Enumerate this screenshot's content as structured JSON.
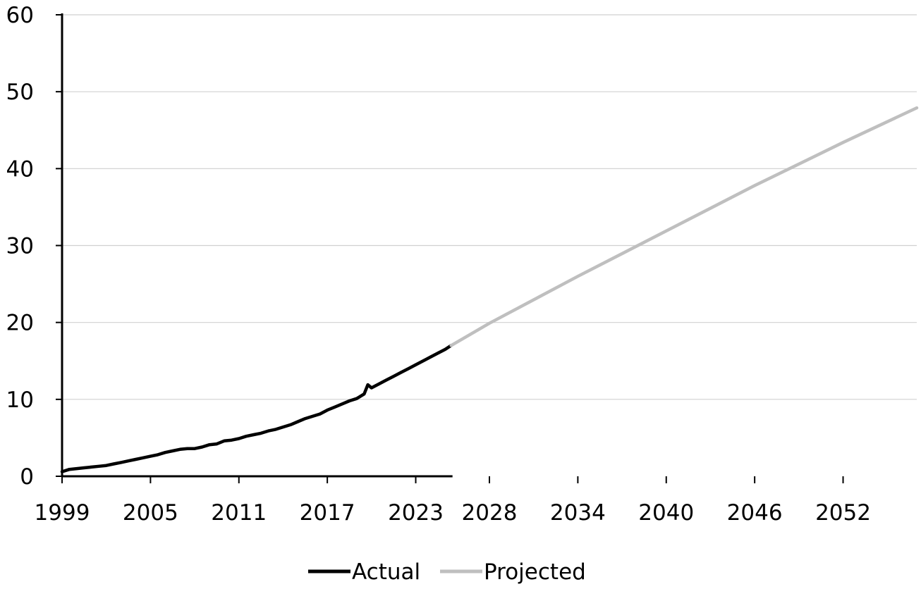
{
  "chart_data": {
    "type": "line",
    "title": "",
    "xlabel": "",
    "ylabel": "",
    "xlim": [
      1999,
      2057
    ],
    "ylim": [
      0,
      60
    ],
    "y_ticks": [
      0,
      10,
      20,
      30,
      40,
      50,
      60
    ],
    "x_ticks": [
      "1999",
      "2005",
      "2011",
      "2017",
      "2023",
      "2028",
      "2034",
      "2040",
      "2046",
      "2052"
    ],
    "grid": "horizontal",
    "legend_position": "bottom",
    "series": [
      {
        "name": "Actual",
        "color": "#000000",
        "x": [
          1999.0,
          1999.5,
          2000.0,
          2000.5,
          2001.0,
          2001.5,
          2002.0,
          2002.5,
          2003.0,
          2003.5,
          2004.0,
          2004.5,
          2005.0,
          2005.5,
          2006.0,
          2006.5,
          2007.0,
          2007.5,
          2008.0,
          2008.5,
          2009.0,
          2009.5,
          2010.0,
          2010.5,
          2011.0,
          2011.5,
          2012.0,
          2012.5,
          2013.0,
          2013.5,
          2014.0,
          2014.5,
          2015.0,
          2015.5,
          2016.0,
          2016.5,
          2017.0,
          2017.5,
          2018.0,
          2018.5,
          2019.0,
          2019.5,
          2019.75,
          2020.0,
          2020.5,
          2021.0,
          2021.5,
          2022.0,
          2022.5,
          2023.0,
          2023.5,
          2024.0,
          2024.5,
          2025.0,
          2025.4
        ],
        "values": [
          0.6,
          0.9,
          1.0,
          1.1,
          1.2,
          1.3,
          1.4,
          1.6,
          1.8,
          2.0,
          2.2,
          2.4,
          2.6,
          2.8,
          3.1,
          3.3,
          3.5,
          3.6,
          3.6,
          3.8,
          4.1,
          4.2,
          4.6,
          4.7,
          4.9,
          5.2,
          5.4,
          5.6,
          5.9,
          6.1,
          6.4,
          6.7,
          7.1,
          7.5,
          7.8,
          8.1,
          8.6,
          9.0,
          9.4,
          9.8,
          10.1,
          10.7,
          11.9,
          11.5,
          12.0,
          12.5,
          13.0,
          13.5,
          14.0,
          14.5,
          15.0,
          15.5,
          16.0,
          16.5,
          17.0
        ]
      },
      {
        "name": "Projected",
        "color": "#BFBFBF",
        "x": [
          2025.4,
          2028,
          2034,
          2040,
          2046,
          2052,
          2057
        ],
        "values": [
          17.0,
          19.9,
          26.0,
          31.9,
          37.8,
          43.4,
          47.9
        ]
      }
    ]
  }
}
